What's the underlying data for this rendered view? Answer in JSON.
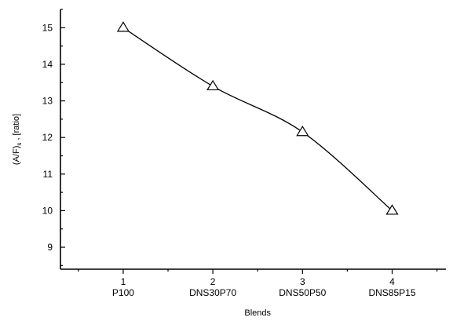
{
  "chart_data": {
    "type": "line",
    "title": "",
    "xlabel": "Blends",
    "ylabel": {
      "main": "(A/F)",
      "subscript": "s",
      "suffix": " , [ratio]"
    },
    "x": [
      1,
      2,
      3,
      4
    ],
    "categories": [
      "P100",
      "DNS30P70",
      "DNS50P50",
      "DNS85P15"
    ],
    "series": [
      {
        "values": [
          15.0,
          13.4,
          12.15,
          10.0
        ],
        "marker": "triangle-open",
        "line": "smooth"
      }
    ],
    "xlim": [
      0.3,
      4.6
    ],
    "ylim": [
      8.4,
      15.5
    ],
    "yticks": [
      9,
      10,
      11,
      12,
      13,
      14,
      15
    ],
    "xticks": [
      1,
      2,
      3,
      4
    ],
    "grid": false,
    "legend": "none",
    "colors": {
      "line": "#000000",
      "marker_fill": "#ffffff",
      "axis": "#000000"
    }
  }
}
